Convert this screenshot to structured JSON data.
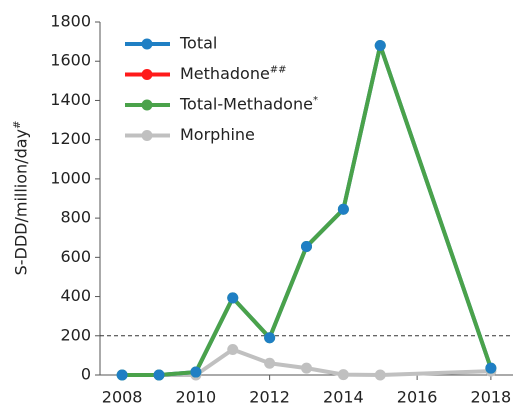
{
  "chart_data": {
    "type": "line",
    "ylabel": "S-DDD/million/day#",
    "x": [
      2008,
      2009,
      2010,
      2011,
      2012,
      2013,
      2014,
      2015,
      2018
    ],
    "series": [
      {
        "name": "Total",
        "color": "#1f7fc4",
        "values": [
          0,
          0,
          15,
          393,
          190,
          655,
          845,
          1680,
          35
        ]
      },
      {
        "name": "Methadone##",
        "color": "#ff1a1a",
        "values": [
          null,
          null,
          null,
          null,
          null,
          null,
          null,
          null,
          null
        ]
      },
      {
        "name": "Total-Methadone*",
        "color": "#4aa24a",
        "values": [
          0,
          0,
          15,
          393,
          190,
          655,
          845,
          1680,
          35
        ]
      },
      {
        "name": "Morphine",
        "color": "#c0c0c0",
        "values": [
          null,
          0,
          0,
          130,
          60,
          35,
          2,
          0,
          20
        ]
      }
    ],
    "xlim": [
      2007.4,
      2018.6
    ],
    "xticks": [
      2008,
      2010,
      2012,
      2014,
      2016,
      2018
    ],
    "ylim": [
      0,
      1800
    ],
    "yticks": [
      0,
      200,
      400,
      600,
      800,
      1000,
      1200,
      1400,
      1600,
      1800
    ],
    "reference_line": 200,
    "legend": "upper-left"
  }
}
